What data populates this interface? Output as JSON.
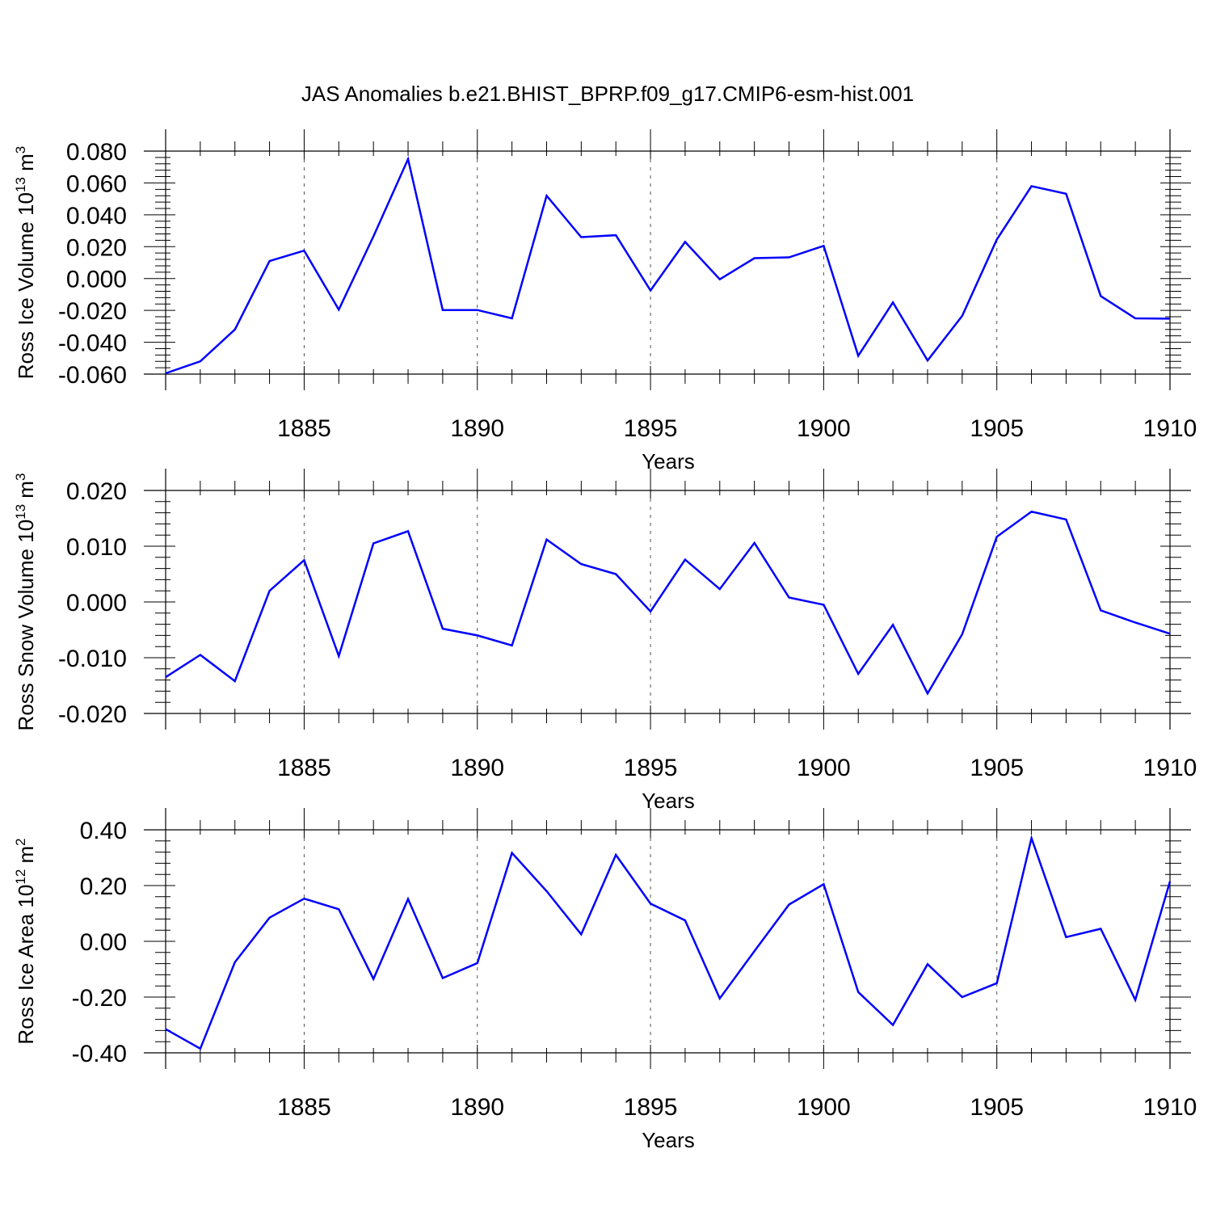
{
  "title": "JAS Anomalies b.e21.BHIST_BPRP.f09_g17.CMIP6-esm-hist.001",
  "chart_data": [
    {
      "type": "line",
      "ylabel": {
        "main": "Ross Ice Volume 10",
        "sup": "13",
        "unit": " m",
        "unit_sup": "3"
      },
      "xlabel": "Years",
      "xlim": [
        1881,
        1910
      ],
      "ylim": [
        -0.06,
        0.08
      ],
      "yticks": [
        "0.080",
        "0.060",
        "0.040",
        "0.020",
        "0.000",
        "-0.020",
        "-0.040",
        "-0.060"
      ],
      "ytick_values": [
        0.08,
        0.06,
        0.04,
        0.02,
        0.0,
        -0.02,
        -0.04,
        -0.06
      ],
      "xticks": [
        "1885",
        "1890",
        "1895",
        "1900",
        "1905",
        "1910"
      ],
      "xtick_values": [
        1885,
        1890,
        1895,
        1900,
        1905,
        1910
      ],
      "grid": "dashed vertical at labeled years",
      "color": "#0000ff",
      "x": [
        1881,
        1882,
        1883,
        1884,
        1885,
        1886,
        1887,
        1888,
        1889,
        1890,
        1891,
        1892,
        1893,
        1894,
        1895,
        1896,
        1897,
        1898,
        1899,
        1900,
        1901,
        1902,
        1903,
        1904,
        1905,
        1906,
        1907,
        1908,
        1909,
        1910
      ],
      "values": [
        -0.0595,
        -0.052,
        -0.032,
        0.011,
        0.0175,
        -0.0195,
        0.0265,
        0.075,
        -0.0198,
        -0.0198,
        -0.025,
        0.052,
        0.026,
        0.0272,
        -0.0075,
        0.023,
        -0.0005,
        0.0128,
        0.0133,
        0.0205,
        -0.0485,
        -0.015,
        -0.0515,
        -0.0235,
        0.0245,
        0.058,
        0.0532,
        -0.011,
        -0.025,
        -0.0252
      ]
    },
    {
      "type": "line",
      "ylabel": {
        "main": "Ross Snow Volume 10",
        "sup": "13",
        "unit": " m",
        "unit_sup": "3"
      },
      "xlabel": "Years",
      "xlim": [
        1881,
        1910
      ],
      "ylim": [
        -0.02,
        0.02
      ],
      "yticks": [
        "0.020",
        "0.010",
        "0.000",
        "-0.010",
        "-0.020"
      ],
      "ytick_values": [
        0.02,
        0.01,
        0.0,
        -0.01,
        -0.02
      ],
      "xticks": [
        "1885",
        "1890",
        "1895",
        "1900",
        "1905",
        "1910"
      ],
      "xtick_values": [
        1885,
        1890,
        1895,
        1900,
        1905,
        1910
      ],
      "grid": "dashed vertical at labeled years",
      "color": "#0000ff",
      "x": [
        1881,
        1882,
        1883,
        1884,
        1885,
        1886,
        1887,
        1888,
        1889,
        1890,
        1891,
        1892,
        1893,
        1894,
        1895,
        1896,
        1897,
        1898,
        1899,
        1900,
        1901,
        1902,
        1903,
        1904,
        1905,
        1906,
        1907,
        1908,
        1909,
        1910
      ],
      "values": [
        -0.0135,
        -0.0095,
        -0.0142,
        0.002,
        0.0075,
        -0.0097,
        0.0105,
        0.0127,
        -0.0048,
        -0.006,
        -0.0078,
        0.0112,
        0.0068,
        0.005,
        -0.0017,
        0.0076,
        0.0023,
        0.0106,
        0.0008,
        -0.0005,
        -0.0129,
        -0.0041,
        -0.0164,
        -0.0058,
        0.0117,
        0.0162,
        0.0148,
        -0.0015,
        -0.0037,
        -0.0057
      ]
    },
    {
      "type": "line",
      "ylabel": {
        "main": "Ross Ice Area 10",
        "sup": "12",
        "unit": " m",
        "unit_sup": "2"
      },
      "xlabel": "Years",
      "xlim": [
        1881,
        1910
      ],
      "ylim": [
        -0.4,
        0.4
      ],
      "yticks": [
        "0.40",
        "0.20",
        "0.00",
        "-0.20",
        "-0.40"
      ],
      "ytick_values": [
        0.4,
        0.2,
        0.0,
        -0.2,
        -0.4
      ],
      "xticks": [
        "1885",
        "1890",
        "1895",
        "1900",
        "1905",
        "1910"
      ],
      "xtick_values": [
        1885,
        1890,
        1895,
        1900,
        1905,
        1910
      ],
      "grid": "dashed vertical at labeled years",
      "color": "#0000ff",
      "x": [
        1881,
        1882,
        1883,
        1884,
        1885,
        1886,
        1887,
        1888,
        1889,
        1890,
        1891,
        1892,
        1893,
        1894,
        1895,
        1896,
        1897,
        1898,
        1899,
        1900,
        1901,
        1902,
        1903,
        1904,
        1905,
        1906,
        1907,
        1908,
        1909,
        1910
      ],
      "values": [
        -0.315,
        -0.385,
        -0.075,
        0.085,
        0.153,
        0.115,
        -0.135,
        0.152,
        -0.132,
        -0.078,
        0.317,
        0.18,
        0.025,
        0.31,
        0.135,
        0.075,
        -0.205,
        -0.035,
        0.132,
        0.205,
        -0.182,
        -0.3,
        -0.082,
        -0.2,
        -0.15,
        0.37,
        0.015,
        0.045,
        -0.21,
        0.215
      ]
    }
  ]
}
